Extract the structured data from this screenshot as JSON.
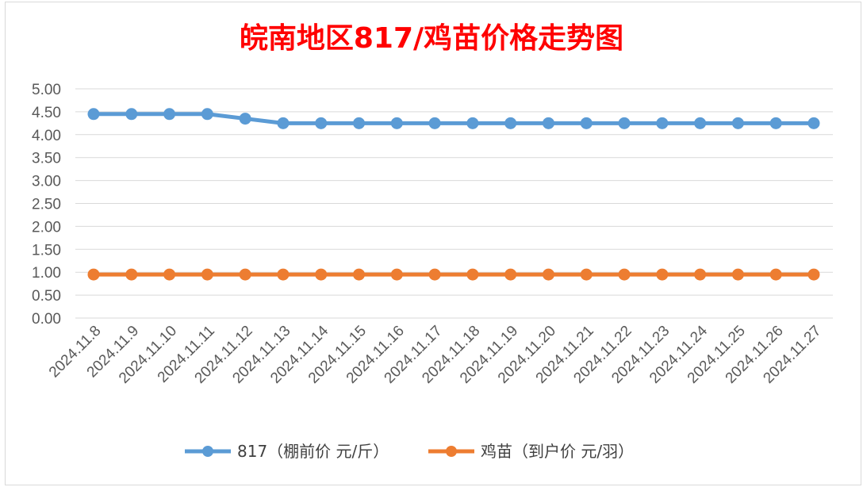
{
  "chart_data": {
    "type": "line",
    "title": "皖南地区817/鸡苗价格走势图",
    "title_color": "#ff0000",
    "categories": [
      "2024.11.8",
      "2024.11.9",
      "2024.11.10",
      "2024.11.11",
      "2024.11.12",
      "2024.11.13",
      "2024.11.14",
      "2024.11.15",
      "2024.11.16",
      "2024.11.17",
      "2024.11.18",
      "2024.11.19",
      "2024.11.20",
      "2024.11.21",
      "2024.11.22",
      "2024.11.23",
      "2024.11.24",
      "2024.11.25",
      "2024.11.26",
      "2024.11.27"
    ],
    "y_ticks": [
      "0.00",
      "0.50",
      "1.00",
      "1.50",
      "2.00",
      "2.50",
      "3.00",
      "3.50",
      "4.00",
      "4.50",
      "5.00"
    ],
    "ylim": [
      0,
      5
    ],
    "grid": true,
    "legend_position": "bottom",
    "series": [
      {
        "name": "817（棚前价 元/斤）",
        "color": "#5b9bd5",
        "values": [
          4.45,
          4.45,
          4.45,
          4.45,
          4.35,
          4.25,
          4.25,
          4.25,
          4.25,
          4.25,
          4.25,
          4.25,
          4.25,
          4.25,
          4.25,
          4.25,
          4.25,
          4.25,
          4.25,
          4.25
        ]
      },
      {
        "name": "鸡苗（到户价 元/羽）",
        "color": "#ed7d31",
        "values": [
          0.95,
          0.95,
          0.95,
          0.95,
          0.95,
          0.95,
          0.95,
          0.95,
          0.95,
          0.95,
          0.95,
          0.95,
          0.95,
          0.95,
          0.95,
          0.95,
          0.95,
          0.95,
          0.95,
          0.95
        ]
      }
    ]
  }
}
